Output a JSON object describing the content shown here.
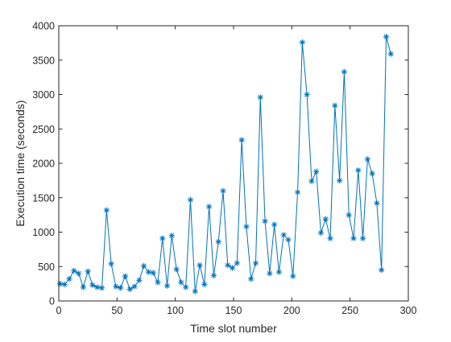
{
  "chart_data": {
    "type": "line",
    "xlabel": "Time slot number",
    "ylabel": "Execution time (seconds)",
    "xlim": [
      0,
      300
    ],
    "ylim": [
      0,
      4000
    ],
    "xticks": [
      0,
      50,
      100,
      150,
      200,
      250,
      300
    ],
    "yticks": [
      0,
      500,
      1000,
      1500,
      2000,
      2500,
      3000,
      3500,
      4000
    ],
    "grid": false,
    "legend": "none",
    "marker": "asterisk",
    "color": "#0072BD",
    "series": [
      {
        "x": [
          1,
          5,
          9,
          13,
          17,
          21,
          25,
          29,
          33,
          37,
          41,
          45,
          49,
          53,
          57,
          61,
          65,
          69,
          73,
          77,
          81,
          85,
          89,
          93,
          97,
          101,
          105,
          109,
          113,
          117,
          121,
          125,
          129,
          133,
          137,
          141,
          145,
          149,
          153,
          157,
          161,
          165,
          169,
          173,
          177,
          181,
          185,
          189,
          193,
          197,
          201,
          205,
          209,
          213,
          217,
          221,
          225,
          229,
          233,
          237,
          241,
          245,
          249,
          253,
          257,
          261,
          265,
          269,
          273,
          277,
          281,
          285
        ],
        "y": [
          250,
          240,
          320,
          440,
          400,
          200,
          430,
          230,
          200,
          190,
          1320,
          540,
          210,
          190,
          360,
          170,
          210,
          300,
          510,
          420,
          410,
          270,
          910,
          220,
          950,
          460,
          270,
          200,
          1470,
          140,
          520,
          240,
          1370,
          370,
          860,
          1600,
          520,
          480,
          550,
          2340,
          1080,
          320,
          550,
          2960,
          1160,
          400,
          1110,
          420,
          960,
          890,
          360,
          1580,
          3760,
          3000,
          1740,
          1880,
          990,
          1190,
          910,
          2840,
          1750,
          3330,
          1250,
          910,
          1900,
          910,
          2060,
          1850,
          1420,
          450,
          3840,
          3590
        ]
      }
    ]
  }
}
